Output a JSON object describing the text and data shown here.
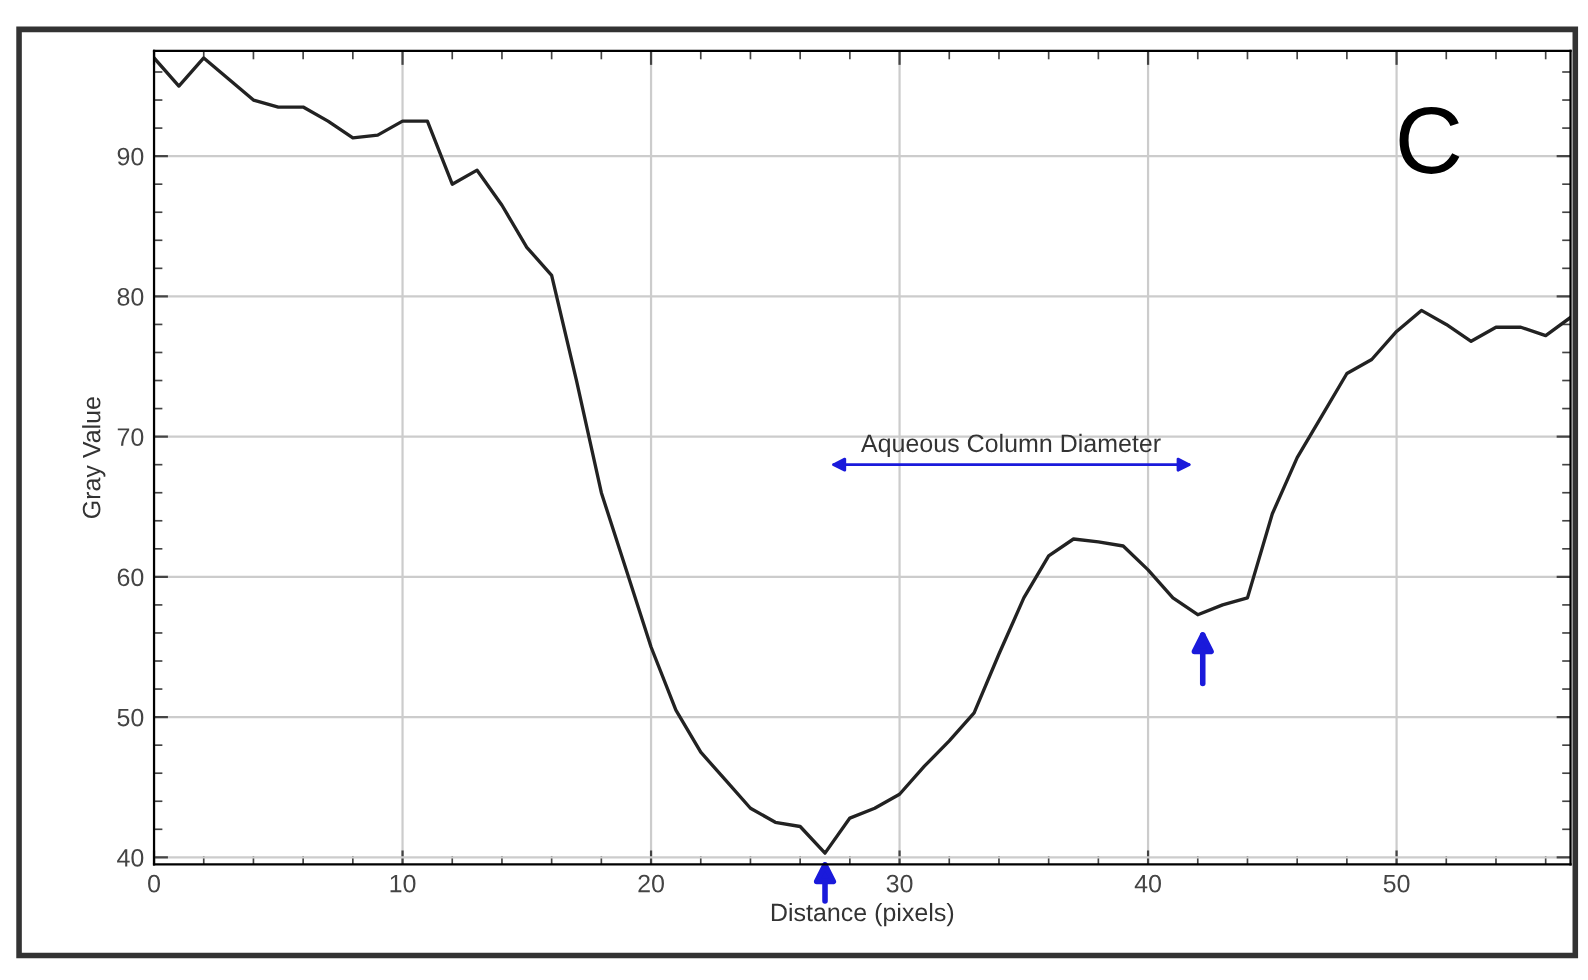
{
  "chart_data": {
    "type": "line",
    "xlabel": "Distance (pixels)",
    "ylabel": "Gray Value",
    "x": [
      0,
      1,
      2,
      3,
      4,
      5,
      6,
      7,
      8,
      9,
      10,
      11,
      12,
      13,
      14,
      15,
      16,
      17,
      18,
      19,
      20,
      21,
      22,
      23,
      24,
      25,
      26,
      27,
      28,
      29,
      30,
      31,
      32,
      33,
      34,
      35,
      36,
      37,
      38,
      39,
      40,
      41,
      42,
      43,
      44,
      45,
      46,
      47,
      48,
      49,
      50,
      51,
      52,
      53,
      54,
      55,
      56,
      57
    ],
    "series": [
      {
        "color": "#222222",
        "values": [
          97,
          95,
          97,
          95.5,
          94,
          93.5,
          93.5,
          92.5,
          91.3,
          91.5,
          92.5,
          92.5,
          88,
          89,
          86.5,
          83.5,
          81.5,
          74,
          66,
          60.5,
          55,
          50.5,
          47.5,
          45.5,
          43.5,
          42.5,
          42.2,
          40.3,
          42.8,
          43.5,
          44.5,
          46.5,
          48.3,
          50.3,
          54.5,
          58.5,
          61.5,
          62.7,
          62.5,
          62.2,
          60.5,
          58.5,
          57.3,
          58,
          58.5,
          64.5,
          68.5,
          71.5,
          74.5,
          75.5,
          77.5,
          79,
          78,
          76.8,
          77.8,
          77.8,
          77.2,
          78.5
        ]
      }
    ],
    "xlim": [
      0,
      57
    ],
    "ylim": [
      39.5,
      97.5
    ],
    "xticks": [
      0,
      {
        "value": 2,
        "label": null
      },
      {
        "value": 4,
        "label": null
      },
      {
        "value": 6,
        "label": null
      },
      {
        "value": 8,
        "label": null
      },
      10,
      {
        "value": 12,
        "label": null
      },
      {
        "value": 14,
        "label": null
      },
      {
        "value": 16,
        "label": null
      },
      {
        "value": 18,
        "label": null
      },
      20,
      {
        "value": 22,
        "label": null
      },
      {
        "value": 24,
        "label": null
      },
      {
        "value": 26,
        "label": null
      },
      {
        "value": 28,
        "label": null
      },
      30,
      {
        "value": 32,
        "label": null
      },
      {
        "value": 34,
        "label": null
      },
      {
        "value": 36,
        "label": null
      },
      {
        "value": 38,
        "label": null
      },
      40,
      {
        "value": 42,
        "label": null
      },
      {
        "value": 44,
        "label": null
      },
      {
        "value": 46,
        "label": null
      },
      {
        "value": 48,
        "label": null
      },
      50,
      {
        "value": 52,
        "label": null
      },
      {
        "value": 54,
        "label": null
      },
      {
        "value": 56,
        "label": null
      }
    ],
    "yticks": [
      40,
      {
        "value": 42,
        "label": null
      },
      {
        "value": 44,
        "label": null
      },
      {
        "value": 46,
        "label": null
      },
      {
        "value": 48,
        "label": null
      },
      50,
      {
        "value": 52,
        "label": null
      },
      {
        "value": 54,
        "label": null
      },
      {
        "value": 56,
        "label": null
      },
      {
        "value": 58,
        "label": null
      },
      60,
      {
        "value": 62,
        "label": null
      },
      {
        "value": 64,
        "label": null
      },
      {
        "value": 66,
        "label": null
      },
      {
        "value": 68,
        "label": null
      },
      70,
      {
        "value": 72,
        "label": null
      },
      {
        "value": 74,
        "label": null
      },
      {
        "value": 76,
        "label": null
      },
      {
        "value": 78,
        "label": null
      },
      80,
      {
        "value": 82,
        "label": null
      },
      {
        "value": 84,
        "label": null
      },
      {
        "value": 86,
        "label": null
      },
      {
        "value": 88,
        "label": null
      },
      90,
      {
        "value": 92,
        "label": null
      },
      {
        "value": 94,
        "label": null
      },
      {
        "value": 96,
        "label": null
      }
    ],
    "grid": true,
    "legend": false,
    "marker": "none",
    "line_style": "solid",
    "annotations": [
      "Aqueous Column Diameter",
      "C"
    ]
  }
}
